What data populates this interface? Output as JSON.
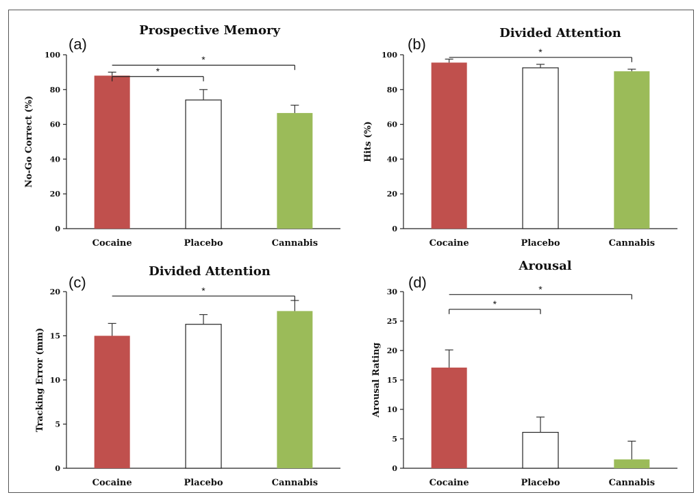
{
  "chart_data": [
    {
      "type": "bar",
      "panel_label": "(a)",
      "title": "Prospective Memory",
      "ylabel": "No-Go Correct (%)",
      "xlabel": "",
      "categories": [
        "Cocaine",
        "Placebo",
        "Cannabis"
      ],
      "values": [
        88,
        74,
        66.5
      ],
      "error": [
        2,
        6,
        4.5
      ],
      "colors": [
        "#C0504D",
        "#FFFFFF",
        "#9BBB59"
      ],
      "ylim": [
        0,
        100
      ],
      "yticks": [
        0,
        20,
        40,
        60,
        80,
        100
      ],
      "significance": [
        {
          "from": "Cocaine",
          "to": "Cannabis",
          "y": 94,
          "label": "*"
        },
        {
          "from": "Cocaine",
          "to": "Placebo",
          "y": 87.5,
          "label": "*",
          "left_drop": true
        }
      ]
    },
    {
      "type": "bar",
      "panel_label": "(b)",
      "title": "Divided Attention",
      "ylabel": "Hits (%)",
      "xlabel": "",
      "categories": [
        "Cocaine",
        "Placebo",
        "Cannabis"
      ],
      "values": [
        95.5,
        92.5,
        90.5
      ],
      "error": [
        2,
        2,
        1.2
      ],
      "colors": [
        "#C0504D",
        "#FFFFFF",
        "#9BBB59"
      ],
      "ylim": [
        0,
        100
      ],
      "yticks": [
        0,
        20,
        40,
        60,
        80,
        100
      ],
      "significance": [
        {
          "from": "Cocaine",
          "to": "Cannabis",
          "y": 98.5,
          "label": "*"
        }
      ]
    },
    {
      "type": "bar",
      "panel_label": "(c)",
      "title": "Divided Attention",
      "ylabel": "Tracking Error (mm)",
      "xlabel": "",
      "categories": [
        "Cocaine",
        "Placebo",
        "Cannabis"
      ],
      "values": [
        15,
        16.3,
        17.8
      ],
      "error": [
        1.4,
        1.1,
        1.2
      ],
      "colors": [
        "#C0504D",
        "#FFFFFF",
        "#9BBB59"
      ],
      "ylim": [
        0,
        20
      ],
      "yticks": [
        0,
        5,
        10,
        15,
        20
      ],
      "significance": [
        {
          "from": "Cocaine",
          "to": "Cannabis",
          "y": 19.5,
          "label": "*"
        }
      ]
    },
    {
      "type": "bar",
      "panel_label": "(d)",
      "title": "Arousal",
      "ylabel": "Arousal Rating",
      "xlabel": "",
      "categories": [
        "Cocaine",
        "Placebo",
        "Cannabis"
      ],
      "values": [
        17.1,
        6.1,
        1.5
      ],
      "error": [
        3,
        2.6,
        3.1
      ],
      "colors": [
        "#C0504D",
        "#FFFFFF",
        "#9BBB59"
      ],
      "ylim": [
        0,
        30
      ],
      "yticks": [
        0,
        5,
        10,
        15,
        20,
        25,
        30
      ],
      "significance": [
        {
          "from": "Cocaine",
          "to": "Cannabis",
          "y": 29.5,
          "label": "*"
        },
        {
          "from": "Cocaine",
          "to": "Placebo",
          "y": 27,
          "label": "*",
          "left_drop": true
        }
      ]
    }
  ]
}
